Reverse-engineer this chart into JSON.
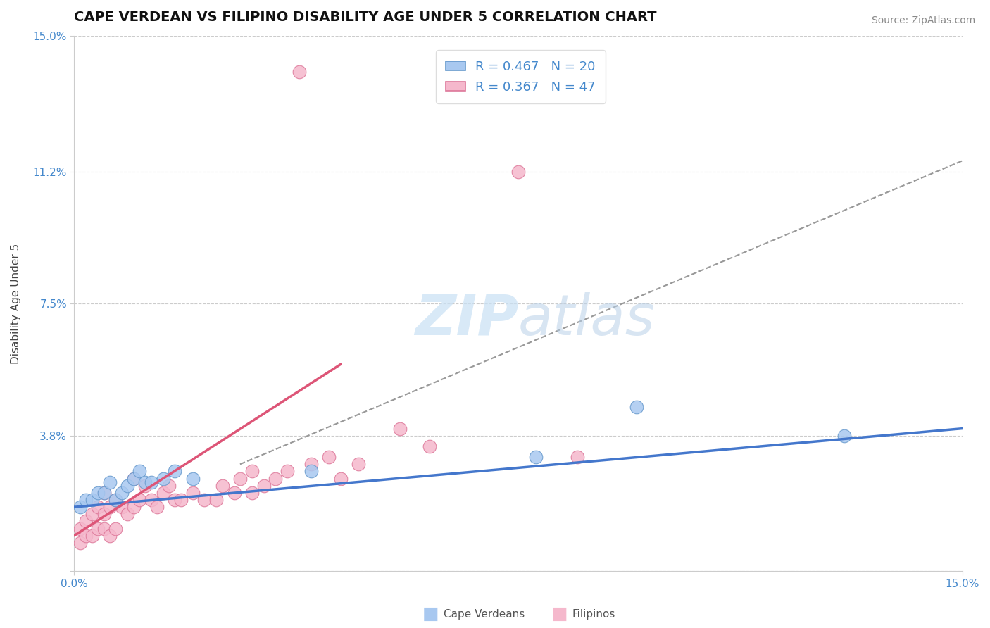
{
  "title": "CAPE VERDEAN VS FILIPINO DISABILITY AGE UNDER 5 CORRELATION CHART",
  "source_text": "Source: ZipAtlas.com",
  "xlabel": "",
  "ylabel": "Disability Age Under 5",
  "xlim": [
    0.0,
    0.15
  ],
  "ylim": [
    0.0,
    0.15
  ],
  "xtick_vals": [
    0.0,
    0.15
  ],
  "xtick_labels": [
    "0.0%",
    "15.0%"
  ],
  "ytick_positions": [
    0.0,
    0.038,
    0.075,
    0.112,
    0.15
  ],
  "ytick_labels": [
    "",
    "3.8%",
    "7.5%",
    "11.2%",
    "15.0%"
  ],
  "legend_r_cape": "R = 0.467",
  "legend_n_cape": "N = 20",
  "legend_r_fil": "R = 0.367",
  "legend_n_fil": "N = 47",
  "cape_verdean_color": "#a8c8f0",
  "filipino_color": "#f5b8cc",
  "cape_verdean_edge": "#6699cc",
  "filipino_edge": "#dd7799",
  "background_color": "#ffffff",
  "grid_color": "#cccccc",
  "title_fontsize": 14,
  "axis_label_fontsize": 11,
  "tick_fontsize": 11,
  "legend_fontsize": 13,
  "cape_x": [
    0.001,
    0.002,
    0.003,
    0.004,
    0.005,
    0.006,
    0.007,
    0.008,
    0.009,
    0.01,
    0.011,
    0.012,
    0.013,
    0.015,
    0.017,
    0.02,
    0.04,
    0.078,
    0.095,
    0.13
  ],
  "cape_y": [
    0.018,
    0.02,
    0.02,
    0.022,
    0.022,
    0.025,
    0.02,
    0.022,
    0.024,
    0.026,
    0.028,
    0.025,
    0.025,
    0.026,
    0.028,
    0.026,
    0.028,
    0.032,
    0.046,
    0.038
  ],
  "fil_x": [
    0.001,
    0.001,
    0.002,
    0.002,
    0.003,
    0.003,
    0.004,
    0.004,
    0.005,
    0.005,
    0.005,
    0.006,
    0.006,
    0.007,
    0.007,
    0.008,
    0.009,
    0.01,
    0.01,
    0.011,
    0.012,
    0.013,
    0.014,
    0.015,
    0.016,
    0.017,
    0.018,
    0.02,
    0.022,
    0.024,
    0.025,
    0.027,
    0.028,
    0.03,
    0.03,
    0.032,
    0.034,
    0.036,
    0.038,
    0.04,
    0.043,
    0.045,
    0.048,
    0.055,
    0.06,
    0.075,
    0.085
  ],
  "fil_y": [
    0.008,
    0.012,
    0.01,
    0.014,
    0.01,
    0.016,
    0.012,
    0.018,
    0.012,
    0.016,
    0.022,
    0.01,
    0.018,
    0.012,
    0.02,
    0.018,
    0.016,
    0.018,
    0.026,
    0.02,
    0.024,
    0.02,
    0.018,
    0.022,
    0.024,
    0.02,
    0.02,
    0.022,
    0.02,
    0.02,
    0.024,
    0.022,
    0.026,
    0.022,
    0.028,
    0.024,
    0.026,
    0.028,
    0.14,
    0.03,
    0.032,
    0.026,
    0.03,
    0.04,
    0.035,
    0.112,
    0.032
  ],
  "cape_trend_x": [
    0.0,
    0.15
  ],
  "cape_trend_y": [
    0.018,
    0.04
  ],
  "fil_trend_x": [
    0.0,
    0.045
  ],
  "fil_trend_y": [
    0.01,
    0.058
  ],
  "dash_trend_x": [
    0.028,
    0.15
  ],
  "dash_trend_y": [
    0.03,
    0.115
  ]
}
